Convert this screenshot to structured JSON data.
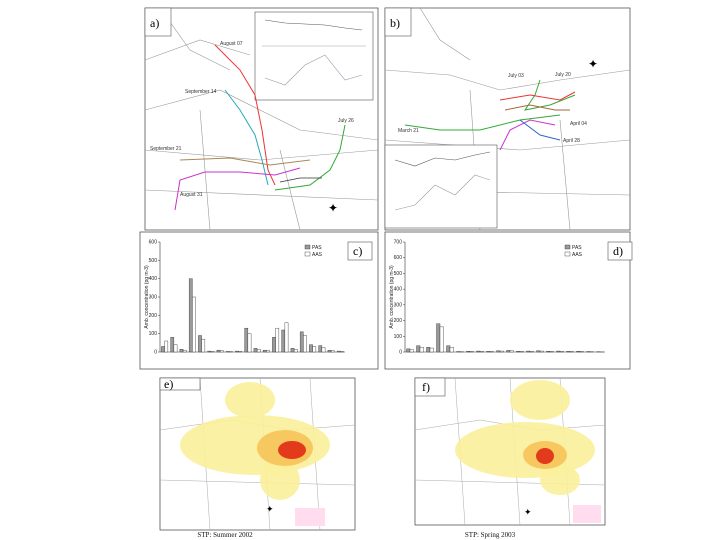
{
  "panels": {
    "a": {
      "label": "a)",
      "map_labels": [
        "August 07",
        "September 14",
        "July 26",
        "September 21",
        "August 31"
      ]
    },
    "b": {
      "label": "b)",
      "map_labels": [
        "July 03",
        "July 20",
        "March 21",
        "April 04",
        "April 28"
      ]
    },
    "e": {
      "label": "e)"
    },
    "f": {
      "label": "f)"
    }
  },
  "captions": [
    "STP: Summer 2002",
    "STP: Spring 2003"
  ],
  "chart_data": [
    {
      "type": "bar",
      "label": "c)",
      "ylabel": "Amb. concentration (pg m-3)",
      "categories": [
        null,
        null,
        null,
        null,
        null,
        null,
        null,
        null,
        null,
        null,
        null,
        null,
        null,
        null,
        null,
        null,
        null,
        null,
        null,
        null
      ],
      "series": [
        {
          "name": "PAS",
          "color": "#9a9a9a",
          "values": [
            30,
            80,
            15,
            400,
            90,
            5,
            10,
            3,
            5,
            130,
            20,
            10,
            80,
            120,
            20,
            110,
            40,
            35,
            10,
            5
          ]
        },
        {
          "name": "AAS",
          "color": "#ffffff",
          "values": [
            60,
            40,
            10,
            300,
            70,
            3,
            8,
            2,
            4,
            100,
            15,
            8,
            130,
            160,
            15,
            90,
            30,
            25,
            8,
            3
          ]
        }
      ],
      "ylim": [
        0,
        600
      ],
      "yticks": [
        0,
        100,
        200,
        300,
        400,
        500,
        600
      ]
    },
    {
      "type": "bar",
      "label": "d)",
      "ylabel": "Amb. concentration (pg m-3)",
      "categories": [
        null,
        null,
        null,
        null,
        null,
        null,
        null,
        null,
        null,
        null,
        null,
        null,
        null,
        null,
        null,
        null,
        null,
        null,
        null,
        null
      ],
      "series": [
        {
          "name": "PAS",
          "color": "#9a9a9a",
          "values": [
            20,
            40,
            30,
            180,
            40,
            3,
            5,
            6,
            4,
            8,
            10,
            5,
            6,
            8,
            5,
            6,
            4,
            5,
            3,
            2
          ]
        },
        {
          "name": "AAS",
          "color": "#ffffff",
          "values": [
            15,
            30,
            25,
            160,
            30,
            2,
            4,
            5,
            3,
            6,
            8,
            4,
            5,
            6,
            4,
            5,
            3,
            4,
            2,
            1
          ]
        }
      ],
      "ylim": [
        0,
        700
      ],
      "yticks": [
        0,
        100,
        200,
        300,
        400,
        500,
        600,
        700
      ]
    }
  ]
}
